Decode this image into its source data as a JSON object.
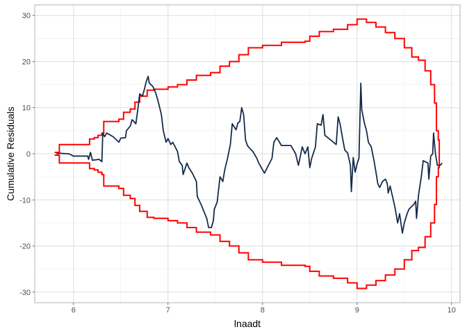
{
  "chart_data": {
    "type": "line",
    "title": "",
    "xlabel": "lnaadt",
    "ylabel": "Cumulative Residuals",
    "xlim": [
      5.59,
      10.09
    ],
    "ylim": [
      -32.3,
      32.3
    ],
    "x_ticks": [
      6,
      7,
      8,
      9,
      10
    ],
    "y_ticks": [
      -30,
      -20,
      -10,
      0,
      10,
      20,
      30
    ],
    "grid": true,
    "colors": {
      "residuals": "#132b4a",
      "bounds": "#ff0000",
      "grid": "#dedede",
      "panel_border": "#b3b3b3"
    },
    "series": [
      {
        "role": "residuals",
        "points": [
          [
            5.82,
            0
          ],
          [
            5.85,
            0.1
          ],
          [
            5.95,
            0
          ],
          [
            6.0,
            -0.5
          ],
          [
            6.15,
            -0.5
          ],
          [
            6.16,
            -1.2
          ],
          [
            6.18,
            0.3
          ],
          [
            6.2,
            -1.4
          ],
          [
            6.27,
            -1.2
          ],
          [
            6.3,
            -1.7
          ],
          [
            6.31,
            4.5
          ],
          [
            6.33,
            3.7
          ],
          [
            6.35,
            4.5
          ],
          [
            6.42,
            3.7
          ],
          [
            6.48,
            2.5
          ],
          [
            6.5,
            3.4
          ],
          [
            6.55,
            3.5
          ],
          [
            6.56,
            5
          ],
          [
            6.6,
            6
          ],
          [
            6.62,
            7.4
          ],
          [
            6.66,
            6.5
          ],
          [
            6.68,
            9.5
          ],
          [
            6.7,
            13
          ],
          [
            6.73,
            12.5
          ],
          [
            6.75,
            14
          ],
          [
            6.77,
            15.7
          ],
          [
            6.79,
            16.8
          ],
          [
            6.8,
            15.4
          ],
          [
            6.84,
            14.6
          ],
          [
            6.87,
            13.2
          ],
          [
            6.9,
            11
          ],
          [
            6.93,
            8.5
          ],
          [
            6.95,
            5
          ],
          [
            6.98,
            2.5
          ],
          [
            7.0,
            3.3
          ],
          [
            7.03,
            2
          ],
          [
            7.05,
            2.5
          ],
          [
            7.1,
            0.5
          ],
          [
            7.12,
            -1.7
          ],
          [
            7.15,
            -2.5
          ],
          [
            7.16,
            -4.5
          ],
          [
            7.2,
            -2
          ],
          [
            7.22,
            -3
          ],
          [
            7.26,
            -4.3
          ],
          [
            7.3,
            -6
          ],
          [
            7.31,
            -9.3
          ],
          [
            7.35,
            -11
          ],
          [
            7.38,
            -12.5
          ],
          [
            7.41,
            -14
          ],
          [
            7.43,
            -16
          ],
          [
            7.46,
            -16
          ],
          [
            7.48,
            -14.5
          ],
          [
            7.49,
            -12
          ],
          [
            7.52,
            -10.5
          ],
          [
            7.55,
            -5
          ],
          [
            7.58,
            -6
          ],
          [
            7.6,
            -3.5
          ],
          [
            7.63,
            -1
          ],
          [
            7.66,
            2
          ],
          [
            7.68,
            6.5
          ],
          [
            7.72,
            5.2
          ],
          [
            7.74,
            6.7
          ],
          [
            7.76,
            7
          ],
          [
            7.78,
            10
          ],
          [
            7.8,
            8.5
          ],
          [
            7.82,
            3
          ],
          [
            7.84,
            1.8
          ],
          [
            7.86,
            1.3
          ],
          [
            7.9,
            0.4
          ],
          [
            7.94,
            -1
          ],
          [
            7.96,
            -2
          ],
          [
            8.02,
            -4.2
          ],
          [
            8.1,
            -1
          ],
          [
            8.12,
            2.5
          ],
          [
            8.15,
            3.5
          ],
          [
            8.2,
            1.8
          ],
          [
            8.3,
            1.8
          ],
          [
            8.35,
            0
          ],
          [
            8.38,
            -2.5
          ],
          [
            8.4,
            -0.5
          ],
          [
            8.42,
            1.5
          ],
          [
            8.45,
            0
          ],
          [
            8.48,
            1.5
          ],
          [
            8.5,
            -3
          ],
          [
            8.52,
            -1
          ],
          [
            8.56,
            1.5
          ],
          [
            8.58,
            6.5
          ],
          [
            8.62,
            6.2
          ],
          [
            8.64,
            8.5
          ],
          [
            8.66,
            4
          ],
          [
            8.72,
            3
          ],
          [
            8.78,
            2
          ],
          [
            8.8,
            8
          ],
          [
            8.82,
            6.5
          ],
          [
            8.85,
            3
          ],
          [
            8.87,
            0.8
          ],
          [
            8.9,
            0.2
          ],
          [
            8.93,
            -2.5
          ],
          [
            8.94,
            -8.2
          ],
          [
            8.96,
            -0.8
          ],
          [
            8.98,
            -4
          ],
          [
            9.0,
            -2.2
          ],
          [
            9.02,
            -1
          ],
          [
            9.04,
            15.3
          ],
          [
            9.05,
            9.5
          ],
          [
            9.08,
            6.5
          ],
          [
            9.1,
            5
          ],
          [
            9.12,
            2.5
          ],
          [
            9.15,
            1.5
          ],
          [
            9.18,
            -1.5
          ],
          [
            9.2,
            -4
          ],
          [
            9.22,
            -6.5
          ],
          [
            9.24,
            -7.3
          ],
          [
            9.27,
            -6
          ],
          [
            9.3,
            -5.5
          ],
          [
            9.32,
            -6.5
          ],
          [
            9.33,
            -8.5
          ],
          [
            9.35,
            -7
          ],
          [
            9.4,
            -11.5
          ],
          [
            9.43,
            -15
          ],
          [
            9.45,
            -13
          ],
          [
            9.48,
            -17.2
          ],
          [
            9.5,
            -15
          ],
          [
            9.53,
            -13
          ],
          [
            9.55,
            -12
          ],
          [
            9.6,
            -11
          ],
          [
            9.62,
            -10.3
          ],
          [
            9.63,
            -14
          ],
          [
            9.65,
            -9
          ],
          [
            9.68,
            -5
          ],
          [
            9.7,
            -1.5
          ],
          [
            9.75,
            -2
          ],
          [
            9.76,
            -5.5
          ],
          [
            9.78,
            -0.5
          ],
          [
            9.8,
            0
          ],
          [
            9.81,
            4.5
          ],
          [
            9.83,
            0
          ],
          [
            9.85,
            -2.5
          ],
          [
            9.88,
            -2.5
          ],
          [
            9.9,
            -2
          ]
        ]
      },
      {
        "role": "upper-bound",
        "step": true,
        "points": [
          [
            5.8,
            0.3
          ],
          [
            5.84,
            0.3
          ],
          [
            5.85,
            2
          ],
          [
            6.15,
            2
          ],
          [
            6.17,
            3.2
          ],
          [
            6.22,
            3.5
          ],
          [
            6.26,
            4
          ],
          [
            6.3,
            4.5
          ],
          [
            6.32,
            7
          ],
          [
            6.48,
            7.5
          ],
          [
            6.53,
            9
          ],
          [
            6.6,
            9.7
          ],
          [
            6.65,
            11.2
          ],
          [
            6.7,
            12.5
          ],
          [
            6.78,
            13.8
          ],
          [
            6.85,
            14
          ],
          [
            7.0,
            14.5
          ],
          [
            7.1,
            15
          ],
          [
            7.2,
            16
          ],
          [
            7.3,
            17
          ],
          [
            7.45,
            17.6
          ],
          [
            7.55,
            19
          ],
          [
            7.65,
            20
          ],
          [
            7.75,
            21.5
          ],
          [
            7.85,
            23
          ],
          [
            8.0,
            23.5
          ],
          [
            8.2,
            24.2
          ],
          [
            8.45,
            24.4
          ],
          [
            8.5,
            25.5
          ],
          [
            8.6,
            26.5
          ],
          [
            8.75,
            27
          ],
          [
            8.9,
            28
          ],
          [
            9.0,
            29.2
          ],
          [
            9.1,
            28.5
          ],
          [
            9.2,
            27.5
          ],
          [
            9.3,
            26.3
          ],
          [
            9.4,
            25
          ],
          [
            9.5,
            23
          ],
          [
            9.58,
            21
          ],
          [
            9.65,
            20.3
          ],
          [
            9.72,
            18
          ],
          [
            9.78,
            15
          ],
          [
            9.82,
            11
          ],
          [
            9.84,
            5
          ],
          [
            9.86,
            3
          ],
          [
            9.87,
            0
          ]
        ]
      },
      {
        "role": "lower-bound",
        "step": true,
        "mirror_of": "upper-bound"
      }
    ]
  }
}
